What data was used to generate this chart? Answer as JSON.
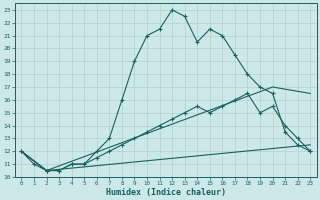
{
  "xlabel": "Humidex (Indice chaleur)",
  "bg_color": "#cce8e8",
  "line_color": "#1a6060",
  "grid_color": "#b0d0d0",
  "xlim": [
    -0.5,
    23.5
  ],
  "ylim": [
    10,
    23.5
  ],
  "yticks": [
    10,
    11,
    12,
    13,
    14,
    15,
    16,
    17,
    18,
    19,
    20,
    21,
    22,
    23
  ],
  "xticks": [
    0,
    1,
    2,
    3,
    4,
    5,
    6,
    7,
    8,
    9,
    10,
    11,
    12,
    13,
    14,
    15,
    16,
    17,
    18,
    19,
    20,
    21,
    22,
    23
  ],
  "line1_x": [
    0,
    1,
    2,
    3,
    4,
    5,
    6,
    7,
    8,
    9,
    10,
    11,
    12,
    13,
    14,
    15,
    16,
    17,
    18,
    19,
    20,
    21,
    22,
    23
  ],
  "line1_y": [
    12,
    11,
    10.5,
    10.5,
    11,
    11,
    12,
    13,
    16,
    19,
    21,
    21.5,
    23,
    22.5,
    20.5,
    21.5,
    21,
    19.5,
    18,
    17,
    16.5,
    13.5,
    12.5,
    12
  ],
  "line2_x": [
    0,
    2,
    3,
    4,
    5,
    6,
    7,
    8,
    9,
    10,
    11,
    12,
    13,
    14,
    15,
    16,
    17,
    18,
    19,
    20,
    21,
    22,
    23
  ],
  "line2_y": [
    12,
    10.5,
    10.5,
    11,
    11,
    11.5,
    12,
    12.5,
    13,
    13.5,
    14,
    14.5,
    15,
    15.5,
    15,
    15.5,
    16,
    16.5,
    15,
    15.5,
    14,
    13,
    12
  ],
  "line3_x": [
    0,
    2,
    23
  ],
  "line3_y": [
    12,
    10.5,
    12.5
  ],
  "line4_x": [
    0,
    2,
    20,
    23
  ],
  "line4_y": [
    12,
    10.5,
    17,
    16.5
  ]
}
